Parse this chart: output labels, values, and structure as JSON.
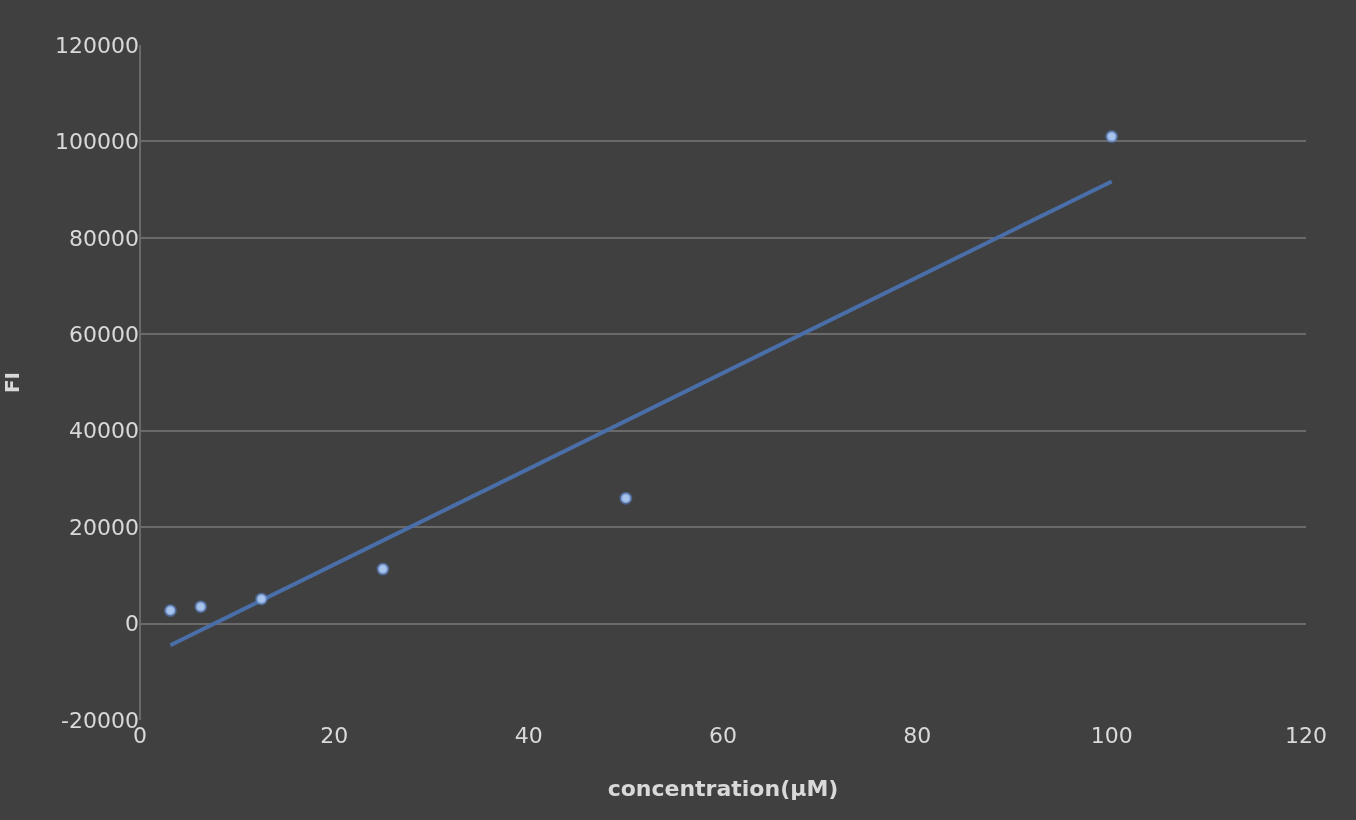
{
  "chart_data": {
    "type": "scatter",
    "xlabel": "concentration(µM)",
    "ylabel": "FI",
    "x": [
      3.125,
      6.25,
      12.5,
      25,
      50,
      100
    ],
    "series": [
      {
        "color": "#a9c4eb",
        "marker": "circle",
        "values": [
          2700,
          3500,
          5100,
          11300,
          26000,
          101000
        ]
      },
      {
        "type": "line",
        "color": "#4a6ea8",
        "line_style": "solid",
        "x": [
          3.125,
          100
        ],
        "values": [
          -4500,
          91700
        ]
      }
    ],
    "xlim": [
      0,
      120
    ],
    "xticks": [
      0,
      20,
      40,
      60,
      80,
      100,
      120
    ],
    "ylim": [
      -20000,
      120000
    ],
    "yticks": [
      -20000,
      0,
      20000,
      40000,
      60000,
      80000,
      100000,
      120000
    ],
    "grid": "y"
  }
}
